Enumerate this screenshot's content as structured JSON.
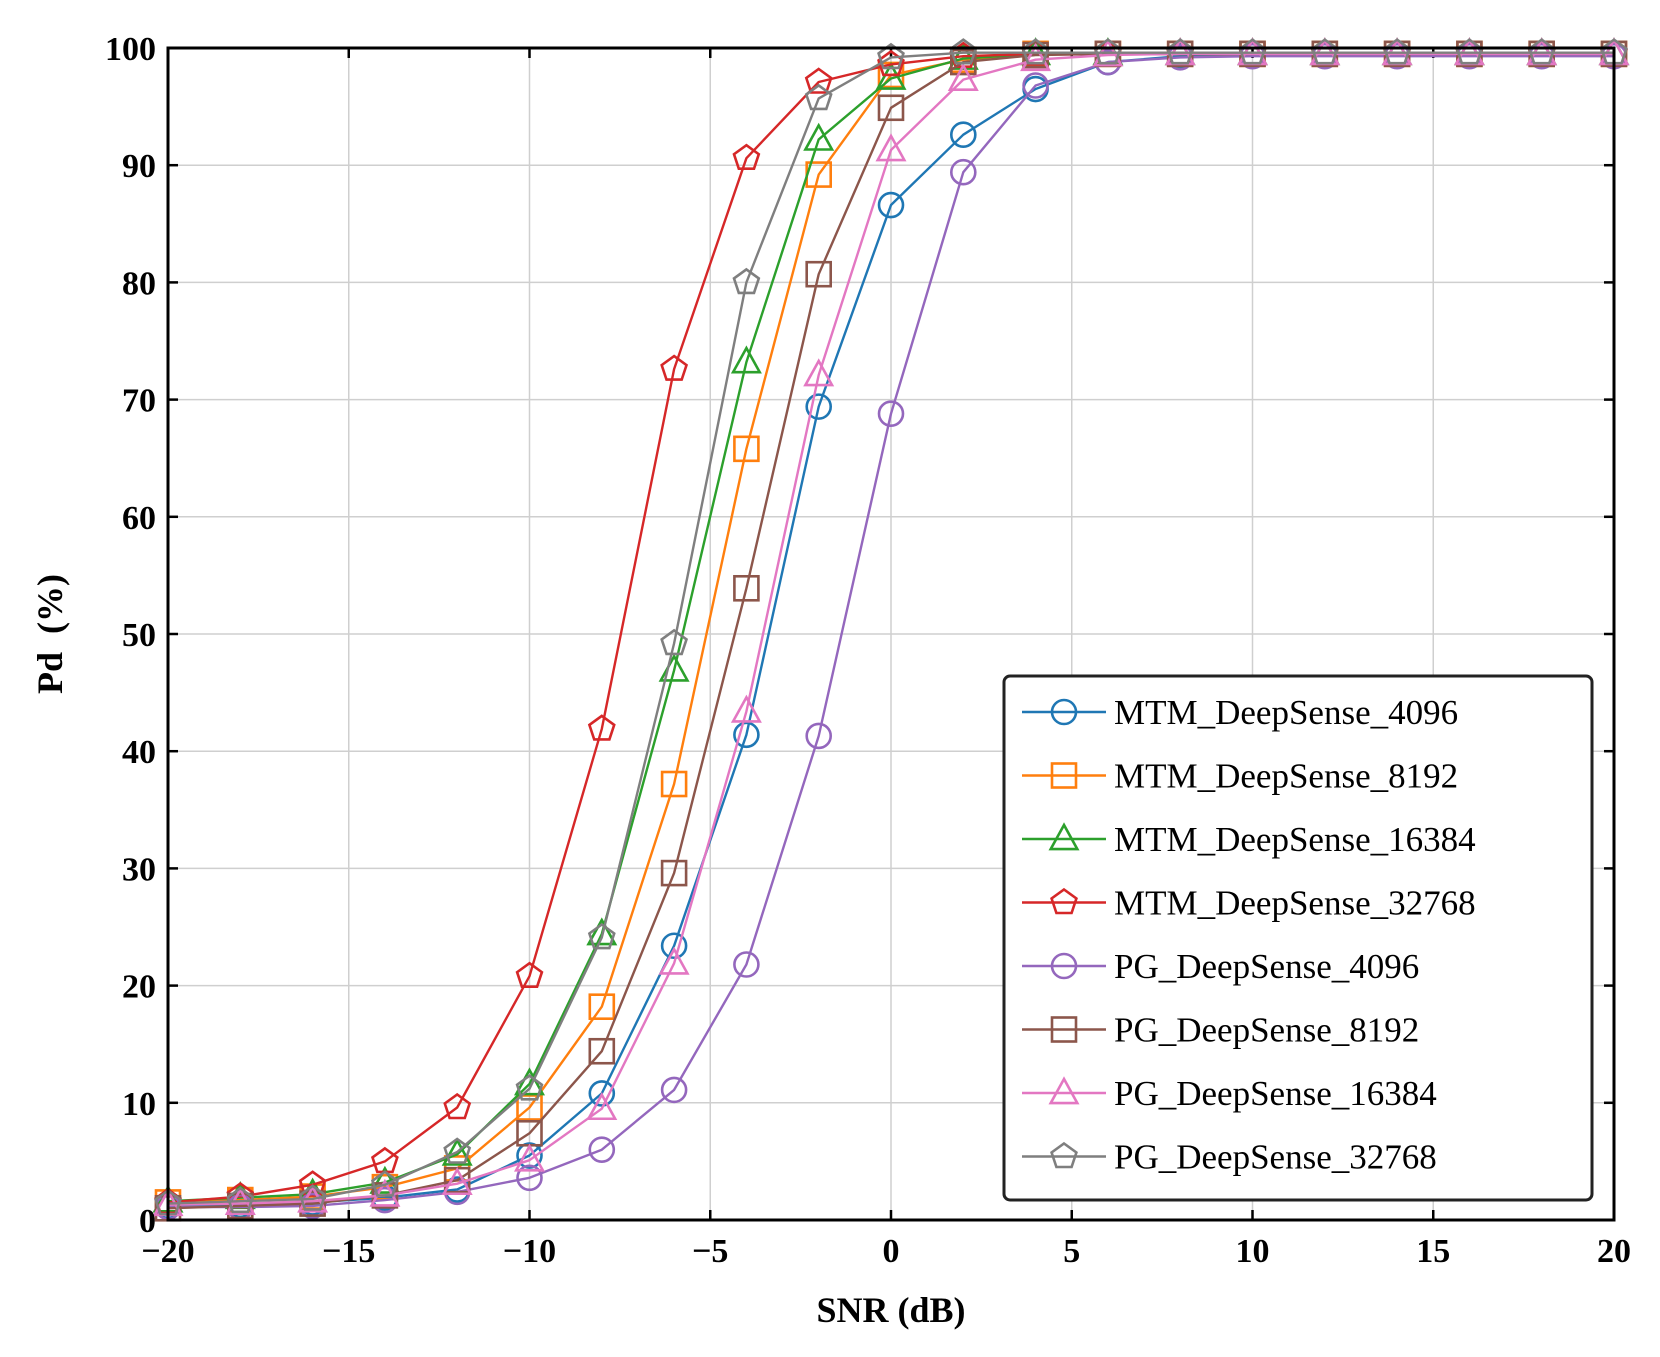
{
  "chart_data": {
    "type": "line",
    "title": "",
    "xlabel": "SNR (dB)",
    "ylabel": "Pd  (%)",
    "xlim": [
      -20,
      20
    ],
    "ylim": [
      0,
      100
    ],
    "xticks": [
      -20,
      -15,
      -10,
      -5,
      0,
      5,
      10,
      15,
      20
    ],
    "xtick_labels": [
      "−20",
      "−15",
      "−10",
      "−5",
      "0",
      "5",
      "10",
      "15",
      "20"
    ],
    "yticks": [
      0,
      10,
      20,
      30,
      40,
      50,
      60,
      70,
      80,
      90,
      100
    ],
    "ytick_labels": [
      "0",
      "10",
      "20",
      "30",
      "40",
      "50",
      "60",
      "70",
      "80",
      "90",
      "100"
    ],
    "grid": true,
    "legend_position": "bottom-right",
    "x": [
      -20,
      -18,
      -16,
      -14,
      -12,
      -10,
      -8,
      -6,
      -4,
      -2,
      0,
      2,
      4,
      6,
      8,
      10,
      12,
      14,
      16,
      18,
      20
    ],
    "series": [
      {
        "name": "MTM_DeepSense_4096",
        "color": "#1f77b4",
        "marker": "circle",
        "values": [
          1.2,
          1.3,
          1.5,
          1.9,
          2.6,
          5.5,
          10.8,
          23.4,
          41.4,
          69.4,
          86.6,
          92.6,
          96.5,
          98.8,
          99.3,
          99.4,
          99.4,
          99.4,
          99.4,
          99.4,
          99.4
        ]
      },
      {
        "name": "MTM_DeepSense_8192",
        "color": "#ff7f0e",
        "marker": "square",
        "values": [
          1.5,
          1.7,
          2.0,
          2.8,
          4.4,
          9.6,
          18.2,
          37.2,
          65.8,
          89.2,
          97.7,
          99.0,
          99.5,
          99.5,
          99.5,
          99.5,
          99.5,
          99.5,
          99.5,
          99.5,
          99.5
        ]
      },
      {
        "name": "MTM_DeepSense_16384",
        "color": "#2ca02c",
        "marker": "triangle",
        "values": [
          1.6,
          1.9,
          2.2,
          3.2,
          5.6,
          11.6,
          24.4,
          46.9,
          73.2,
          92.2,
          97.4,
          99.1,
          99.5,
          99.5,
          99.5,
          99.5,
          99.5,
          99.5,
          99.5,
          99.5,
          99.5
        ]
      },
      {
        "name": "MTM_DeepSense_32768",
        "color": "#d62728",
        "marker": "pentagon",
        "values": [
          1.5,
          2.0,
          3.0,
          5.0,
          9.6,
          20.8,
          41.9,
          72.6,
          90.6,
          97.1,
          98.6,
          99.3,
          99.5,
          99.5,
          99.5,
          99.5,
          99.5,
          99.5,
          99.5,
          99.5,
          99.5
        ]
      },
      {
        "name": "PG_DeepSense_4096",
        "color": "#9467bd",
        "marker": "circle",
        "values": [
          1.1,
          1.1,
          1.2,
          1.7,
          2.4,
          3.6,
          6.0,
          11.1,
          21.8,
          41.3,
          68.8,
          89.4,
          96.8,
          98.8,
          99.2,
          99.3,
          99.3,
          99.3,
          99.3,
          99.3,
          99.3
        ]
      },
      {
        "name": "PG_DeepSense_8192",
        "color": "#8c564b",
        "marker": "square",
        "values": [
          1.0,
          1.2,
          1.4,
          2.1,
          3.4,
          7.4,
          14.4,
          29.6,
          53.9,
          80.7,
          94.9,
          98.8,
          99.4,
          99.5,
          99.5,
          99.5,
          99.5,
          99.5,
          99.5,
          99.5,
          99.5
        ]
      },
      {
        "name": "PG_DeepSense_16384",
        "color": "#e377c2",
        "marker": "triangle",
        "values": [
          1.3,
          1.4,
          1.6,
          2.1,
          3.1,
          5.1,
          9.5,
          21.9,
          43.4,
          72.1,
          91.3,
          97.3,
          99.0,
          99.4,
          99.5,
          99.5,
          99.5,
          99.5,
          99.5,
          99.5,
          99.5
        ]
      },
      {
        "name": "PG_DeepSense_32768",
        "color": "#7f7f7f",
        "marker": "pentagon",
        "values": [
          1.4,
          1.6,
          1.8,
          3.0,
          5.8,
          11.2,
          24.1,
          49.2,
          80.0,
          95.7,
          99.2,
          99.6,
          99.6,
          99.6,
          99.6,
          99.6,
          99.6,
          99.6,
          99.6,
          99.6,
          99.6
        ]
      }
    ]
  }
}
